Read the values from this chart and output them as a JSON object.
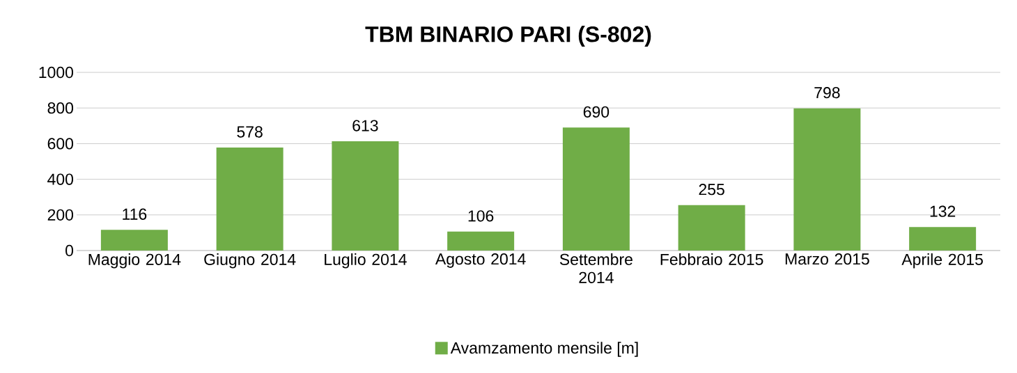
{
  "chart_data": {
    "type": "bar",
    "title": "TBM BINARIO PARI  (S-802)",
    "categories": [
      "Maggio 2014",
      "Giugno 2014",
      "Luglio 2014",
      "Agosto 2014",
      "Settembre 2014",
      "Febbraio 2015",
      "Marzo 2015",
      "Aprile 2015"
    ],
    "series": [
      {
        "name": "Avamzamento mensile [m]",
        "color": "#70ad47",
        "values": [
          116,
          578,
          613,
          106,
          690,
          255,
          798,
          132
        ]
      }
    ],
    "ylim": [
      0,
      1000
    ],
    "yticks": [
      0,
      200,
      400,
      600,
      800,
      1000
    ],
    "grid": "y",
    "legend": "bottom",
    "data_labels": true
  }
}
